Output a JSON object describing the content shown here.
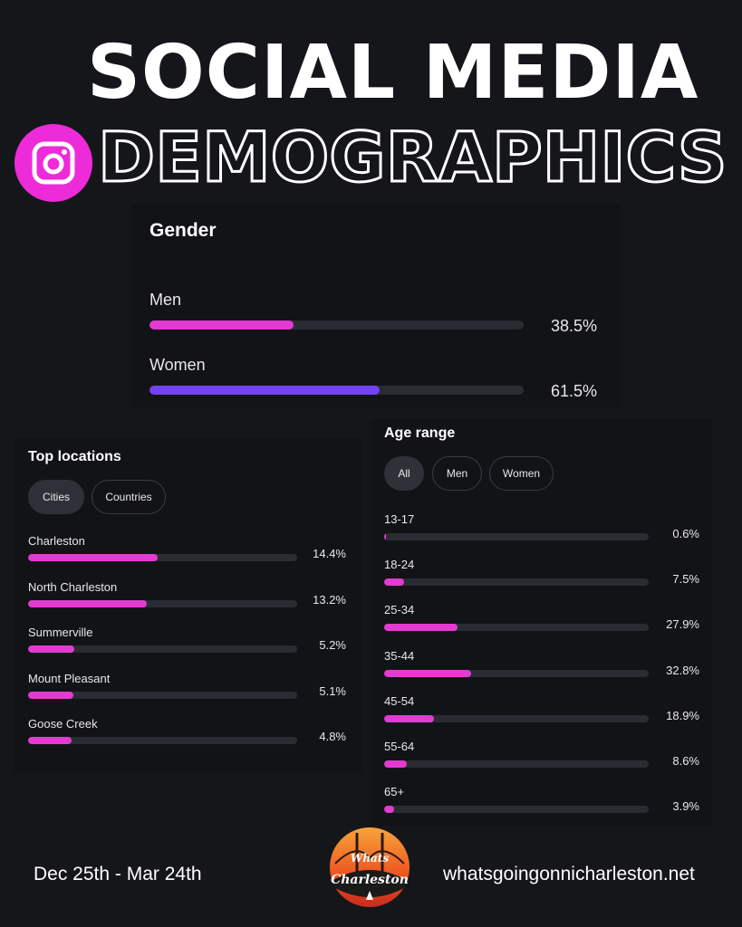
{
  "header": {
    "title_line1": "SOCIAL MEDIA",
    "title_line2": "DEMOGRAPHICS",
    "icon": "instagram-icon"
  },
  "gender": {
    "title": "Gender",
    "items": [
      {
        "label": "Men",
        "percent": 38.5,
        "display": "38.5%",
        "color": "#e33bd2"
      },
      {
        "label": "Women",
        "percent": 61.5,
        "display": "61.5%",
        "color": "#7442f5"
      }
    ]
  },
  "locations": {
    "title": "Top locations",
    "tabs": [
      "Cities",
      "Countries"
    ],
    "active_tab": "Cities",
    "bar_color": "#e33bd2",
    "items": [
      {
        "label": "Charleston",
        "percent": 14.4,
        "display": "14.4%"
      },
      {
        "label": "North Charleston",
        "percent": 13.2,
        "display": "13.2%"
      },
      {
        "label": "Summerville",
        "percent": 5.2,
        "display": "5.2%"
      },
      {
        "label": "Mount Pleasant",
        "percent": 5.1,
        "display": "5.1%"
      },
      {
        "label": "Goose Creek",
        "percent": 4.8,
        "display": "4.8%"
      }
    ]
  },
  "age": {
    "title": "Age range",
    "tabs": [
      "All",
      "Men",
      "Women"
    ],
    "active_tab": "All",
    "bar_color": "#e33bd2",
    "items": [
      {
        "label": "13-17",
        "percent": 0.6,
        "display": "0.6%"
      },
      {
        "label": "18-24",
        "percent": 7.5,
        "display": "7.5%"
      },
      {
        "label": "25-34",
        "percent": 27.9,
        "display": "27.9%"
      },
      {
        "label": "35-44",
        "percent": 32.8,
        "display": "32.8%"
      },
      {
        "label": "45-54",
        "percent": 18.9,
        "display": "18.9%"
      },
      {
        "label": "55-64",
        "percent": 8.6,
        "display": "8.6%"
      },
      {
        "label": "65+",
        "percent": 3.9,
        "display": "3.9%"
      }
    ]
  },
  "footer": {
    "date_range": "Dec 25th - Mar 24th",
    "website": "whatsgoingonnicharleston.net",
    "logo_text_top": "Whats",
    "logo_text_bottom": "Charleston"
  }
}
